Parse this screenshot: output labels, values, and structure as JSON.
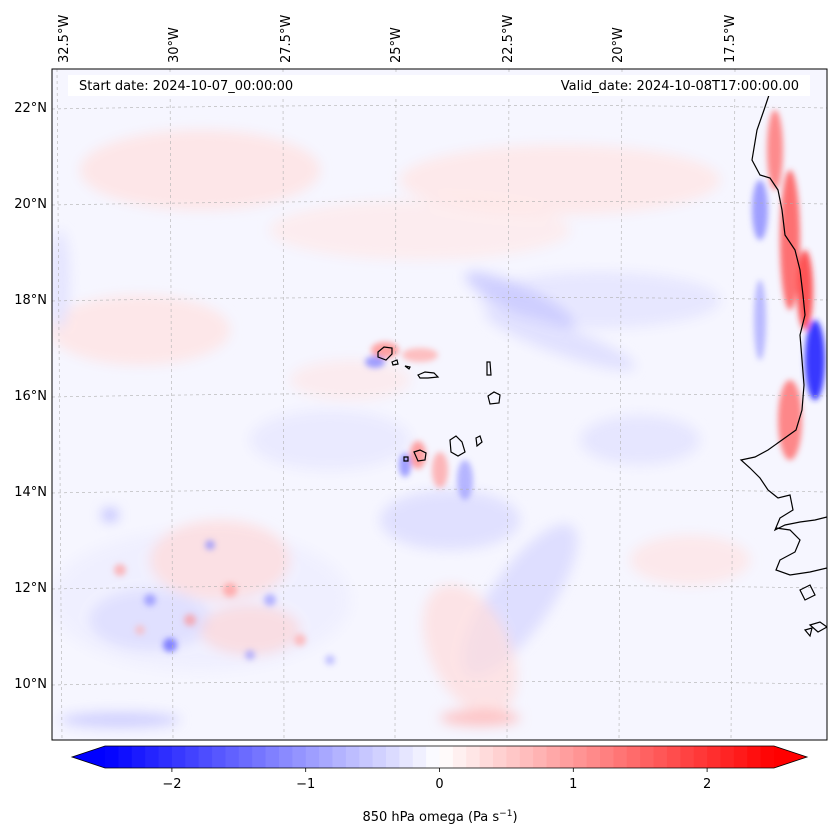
{
  "header": {
    "start_date": "Start date: 2024-10-07_00:00:00",
    "valid_date": "Valid_date: 2024-10-08T17:00:00.00"
  },
  "longitude_labels": [
    "32.5°W",
    "30°W",
    "27.5°W",
    "25°W",
    "22.5°W",
    "20°W",
    "17.5°W"
  ],
  "latitude_labels": [
    "22°N",
    "20°N",
    "18°N",
    "16°N",
    "14°N",
    "12°N",
    "10°N"
  ],
  "colorbar": {
    "label": "850 hPa omega (Pa s",
    "label_superscript": "−1",
    "label_suffix": ")",
    "ticks": [
      "−2",
      "−1",
      "0",
      "1",
      "2"
    ],
    "tick_values": [
      -2,
      -1,
      0,
      1,
      2
    ],
    "range": [
      -2.5,
      2.5
    ],
    "extend": "both",
    "colormap": "bwr",
    "color_low": "#0000ff",
    "color_mid": "#ffffff",
    "color_high": "#ff0000"
  },
  "colors": {
    "coastline": "#000000",
    "gridline": "#b0b0b0"
  }
}
